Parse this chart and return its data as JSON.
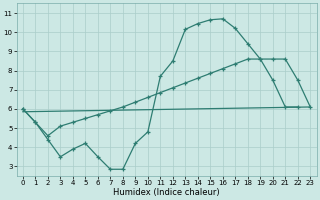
{
  "xlabel": "Humidex (Indice chaleur)",
  "bg_color": "#cce8e4",
  "grid_color": "#aaceca",
  "line_color": "#2e7d72",
  "xlim": [
    -0.5,
    23.5
  ],
  "ylim": [
    2.5,
    11.5
  ],
  "xticks": [
    0,
    1,
    2,
    3,
    4,
    5,
    6,
    7,
    8,
    9,
    10,
    11,
    12,
    13,
    14,
    15,
    16,
    17,
    18,
    19,
    20,
    21,
    22,
    23
  ],
  "yticks": [
    3,
    4,
    5,
    6,
    7,
    8,
    9,
    10,
    11
  ],
  "line1_x": [
    0,
    1,
    2,
    3,
    4,
    5,
    6,
    7,
    8,
    9,
    10,
    11,
    12,
    13,
    14,
    15,
    16,
    17,
    18,
    19,
    20,
    21,
    22
  ],
  "line1_y": [
    6.0,
    5.3,
    4.4,
    3.5,
    3.9,
    4.2,
    3.5,
    2.85,
    2.85,
    4.2,
    4.8,
    7.7,
    8.5,
    10.15,
    10.45,
    10.65,
    10.7,
    10.2,
    9.4,
    8.6,
    7.5,
    6.1,
    6.1
  ],
  "line2_x": [
    0,
    1,
    2,
    3,
    4,
    5,
    6,
    7,
    8,
    9,
    10,
    11,
    12,
    13,
    14,
    15,
    16,
    17,
    18,
    19,
    20,
    21,
    22,
    23
  ],
  "line2_y": [
    6.0,
    5.3,
    4.6,
    5.1,
    5.3,
    5.5,
    5.7,
    5.9,
    6.1,
    6.35,
    6.6,
    6.85,
    7.1,
    7.35,
    7.6,
    7.85,
    8.1,
    8.35,
    8.6,
    8.6,
    8.6,
    8.6,
    7.5,
    6.1
  ],
  "line3_x": [
    0,
    23
  ],
  "line3_y": [
    5.85,
    6.1
  ]
}
